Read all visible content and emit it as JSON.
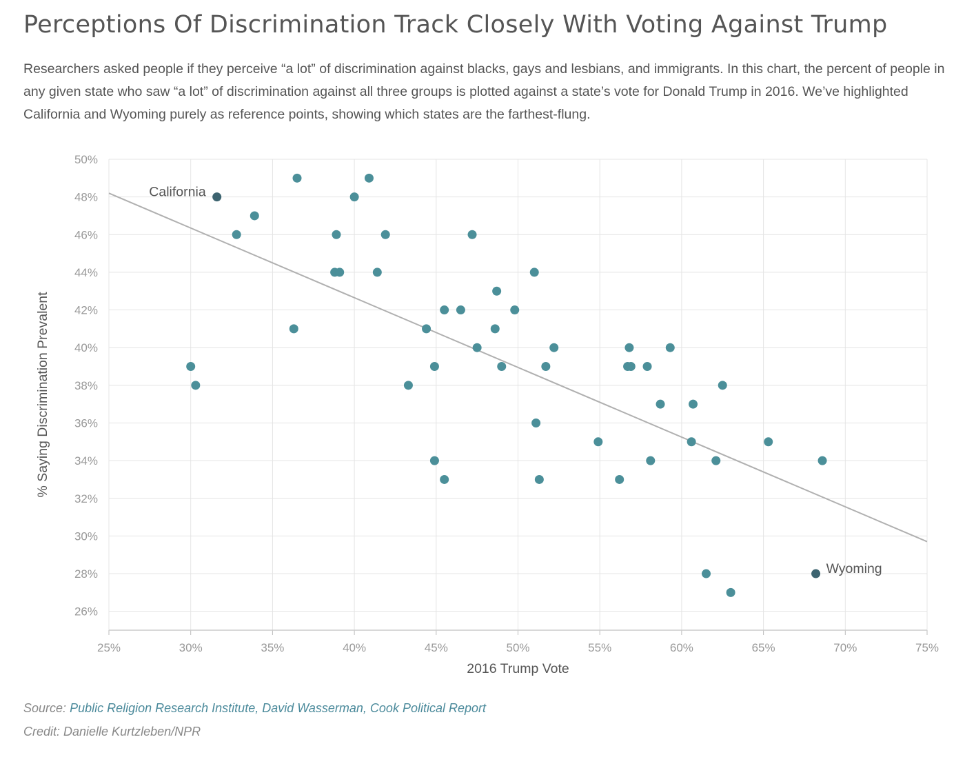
{
  "title": "Perceptions Of Discrimination Track Closely With Voting Against Trump",
  "subtitle": "Researchers asked people if they perceive “a lot” of discrimination against blacks, gays and lesbians, and immigrants. In this chart, the percent of people in any given state who saw “a lot” of discrimination against all three groups is plotted against a state’s vote for Donald Trump in 2016. We’ve highlighted California and Wyoming purely as reference points, showing which states are the farthest-flung.",
  "source": {
    "label": "Source:",
    "link_text": "Public Religion Research Institute, David Wasserman, Cook Political Report"
  },
  "credit": "Credit: Danielle Kurtzleben/NPR",
  "colors": {
    "point": "#4b8f99",
    "highlight": "#3d6470",
    "trendline": "#b0b0b0",
    "grid": "#e4e4e4"
  },
  "chart_data": {
    "type": "scatter",
    "xlabel": "2016 Trump Vote",
    "ylabel": "% Saying Discrimination Prevalent",
    "xlim": [
      25,
      75
    ],
    "ylim": [
      25,
      50
    ],
    "x_ticks": [
      "25%",
      "30%",
      "35%",
      "40%",
      "45%",
      "50%",
      "55%",
      "60%",
      "65%",
      "70%",
      "75%"
    ],
    "y_ticks": [
      "26%",
      "28%",
      "30%",
      "32%",
      "34%",
      "36%",
      "38%",
      "40%",
      "42%",
      "44%",
      "46%",
      "48%",
      "50%"
    ],
    "grid": true,
    "trendline": {
      "x": [
        25,
        75
      ],
      "y": [
        48.2,
        29.7
      ]
    },
    "highlighted": [
      {
        "label": "California",
        "x": 31.6,
        "y": 48
      },
      {
        "label": "Wyoming",
        "x": 68.2,
        "y": 28
      }
    ],
    "points": [
      {
        "x": 30.0,
        "y": 39
      },
      {
        "x": 30.3,
        "y": 38
      },
      {
        "x": 32.8,
        "y": 46
      },
      {
        "x": 33.9,
        "y": 47
      },
      {
        "x": 36.3,
        "y": 41
      },
      {
        "x": 36.5,
        "y": 49
      },
      {
        "x": 38.8,
        "y": 44
      },
      {
        "x": 38.9,
        "y": 46
      },
      {
        "x": 39.1,
        "y": 44
      },
      {
        "x": 40.0,
        "y": 48
      },
      {
        "x": 40.9,
        "y": 49
      },
      {
        "x": 41.4,
        "y": 44
      },
      {
        "x": 41.9,
        "y": 46
      },
      {
        "x": 43.3,
        "y": 38
      },
      {
        "x": 44.4,
        "y": 41
      },
      {
        "x": 44.9,
        "y": 39
      },
      {
        "x": 44.9,
        "y": 34
      },
      {
        "x": 45.5,
        "y": 42
      },
      {
        "x": 45.5,
        "y": 33
      },
      {
        "x": 46.5,
        "y": 42
      },
      {
        "x": 47.2,
        "y": 46
      },
      {
        "x": 47.5,
        "y": 40
      },
      {
        "x": 48.6,
        "y": 41
      },
      {
        "x": 48.7,
        "y": 43
      },
      {
        "x": 49.0,
        "y": 39
      },
      {
        "x": 49.8,
        "y": 42
      },
      {
        "x": 51.0,
        "y": 44
      },
      {
        "x": 51.1,
        "y": 36
      },
      {
        "x": 51.3,
        "y": 33
      },
      {
        "x": 51.7,
        "y": 39
      },
      {
        "x": 52.2,
        "y": 40
      },
      {
        "x": 54.9,
        "y": 35
      },
      {
        "x": 56.2,
        "y": 33
      },
      {
        "x": 56.7,
        "y": 39
      },
      {
        "x": 56.8,
        "y": 40
      },
      {
        "x": 56.9,
        "y": 39
      },
      {
        "x": 57.9,
        "y": 39
      },
      {
        "x": 58.1,
        "y": 34
      },
      {
        "x": 58.7,
        "y": 37
      },
      {
        "x": 59.3,
        "y": 40
      },
      {
        "x": 60.6,
        "y": 35
      },
      {
        "x": 60.7,
        "y": 37
      },
      {
        "x": 61.5,
        "y": 28
      },
      {
        "x": 62.1,
        "y": 34
      },
      {
        "x": 62.5,
        "y": 38
      },
      {
        "x": 63.0,
        "y": 27
      },
      {
        "x": 65.3,
        "y": 35
      },
      {
        "x": 68.6,
        "y": 34
      }
    ]
  }
}
